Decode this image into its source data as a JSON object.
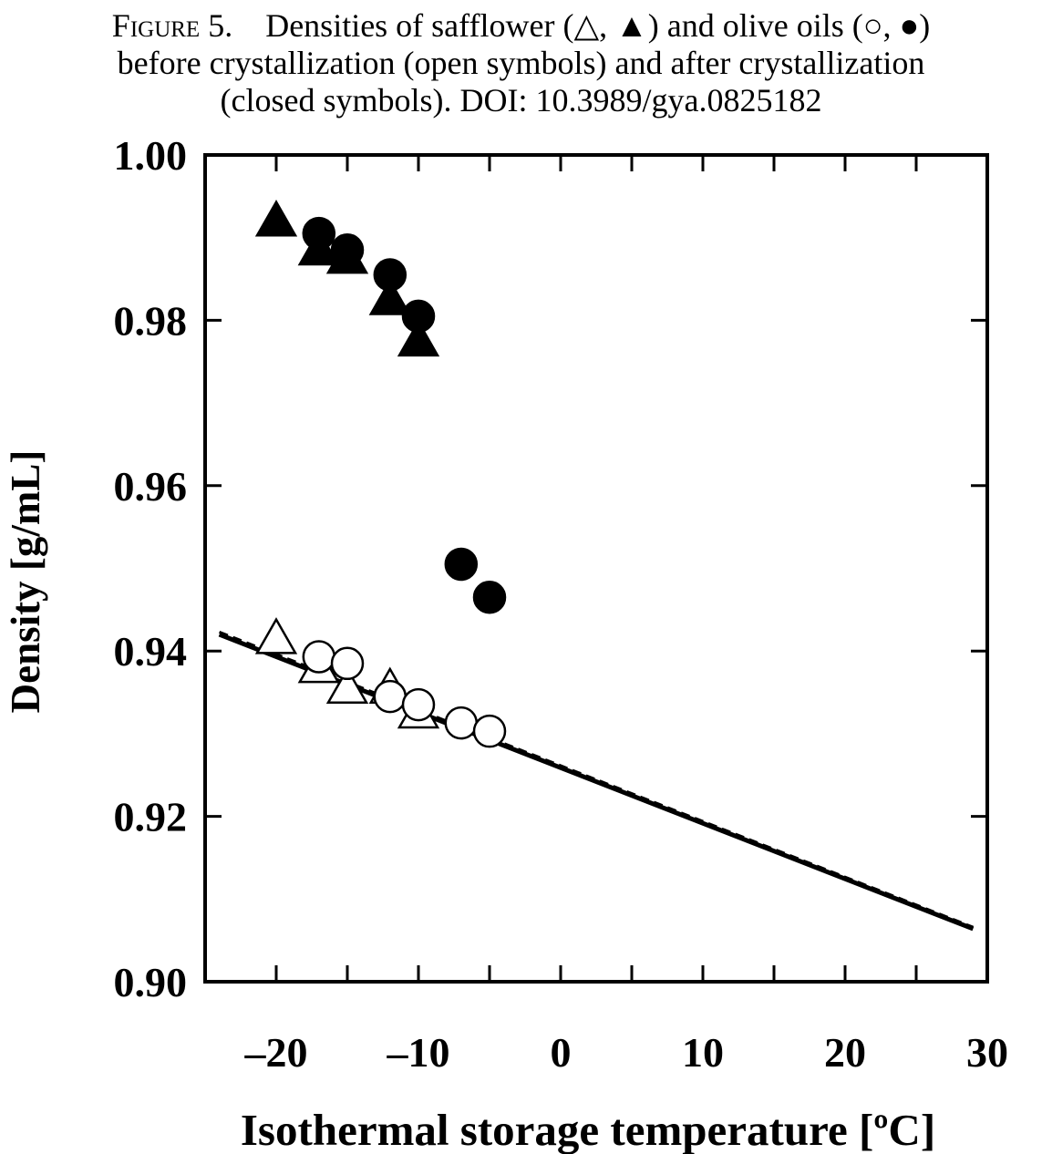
{
  "caption": {
    "figure_label": "Figure 5.",
    "line1": "Densities of safflower (△, ▲) and olive oils (○, ●)",
    "line2": "before crystallization (open symbols) and after crystallization",
    "line3": "(closed symbols).  DOI: 10.3989/gya.0825182"
  },
  "chart_data": {
    "type": "scatter",
    "xlabel": "Isothermal storage temperature [ºC]",
    "ylabel": "Density [g/mL]",
    "xlim": [
      -25,
      30
    ],
    "ylim": [
      0.9,
      1.0
    ],
    "xticks": [
      -20,
      -10,
      0,
      10,
      20,
      30
    ],
    "xtick_labels": [
      "–20",
      "–10",
      "0",
      "10",
      "20",
      "30"
    ],
    "yticks": [
      0.9,
      0.92,
      0.94,
      0.96,
      0.98,
      1.0
    ],
    "ytick_labels": [
      "0.90",
      "0.92",
      "0.94",
      "0.96",
      "0.98",
      "1.00"
    ],
    "grid": false,
    "series": [
      {
        "marker": "triangle-closed",
        "color": "#000000",
        "points": [
          [
            -20,
            0.992
          ],
          [
            -17,
            0.9885
          ],
          [
            -15,
            0.9875
          ],
          [
            -12,
            0.9825
          ],
          [
            -10,
            0.9775
          ]
        ]
      },
      {
        "marker": "circle-closed",
        "color": "#000000",
        "points": [
          [
            -17,
            0.9905
          ],
          [
            -15,
            0.9885
          ],
          [
            -12,
            0.9855
          ],
          [
            -10,
            0.9805
          ],
          [
            -7,
            0.9505
          ],
          [
            -5,
            0.9465
          ]
        ]
      },
      {
        "marker": "triangle-open",
        "color": "#000000",
        "points": [
          [
            -20,
            0.9415
          ],
          [
            -17,
            0.938
          ],
          [
            -15,
            0.9355
          ],
          [
            -12,
            0.9355
          ],
          [
            -10,
            0.9325
          ]
        ]
      },
      {
        "marker": "circle-open",
        "color": "#000000",
        "points": [
          [
            -17,
            0.9393
          ],
          [
            -15,
            0.9385
          ],
          [
            -12,
            0.9345
          ],
          [
            -10,
            0.9335
          ],
          [
            -7,
            0.9313
          ],
          [
            -5,
            0.9303
          ]
        ]
      }
    ],
    "fit_lines": [
      {
        "style": "solid",
        "x": [
          -24,
          29
        ],
        "y": [
          0.942,
          0.9064
        ]
      },
      {
        "style": "dashed",
        "x": [
          -24,
          29
        ],
        "y": [
          0.9423,
          0.9066
        ]
      }
    ]
  }
}
